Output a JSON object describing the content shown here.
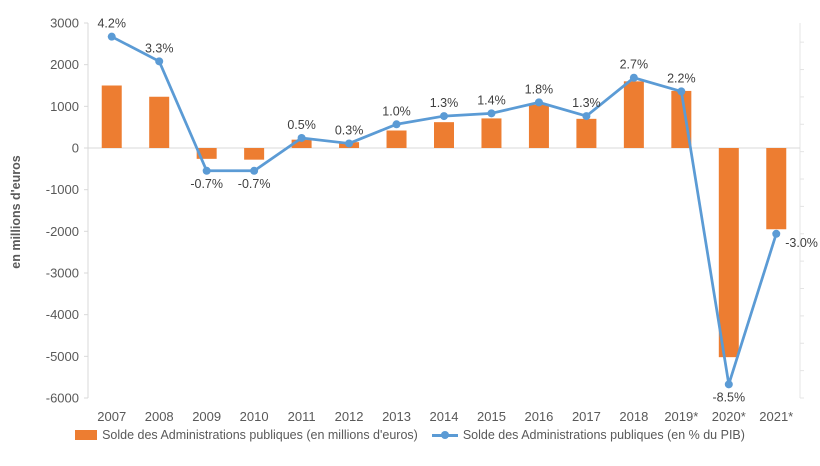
{
  "chart_data": {
    "type": "combo-bar-line",
    "title": "",
    "categories": [
      "2007",
      "2008",
      "2009",
      "2010",
      "2011",
      "2012",
      "2013",
      "2014",
      "2015",
      "2016",
      "2017",
      "2018",
      "2019*",
      "2020*",
      "2021*"
    ],
    "series": [
      {
        "name": "Solde des Administrations publiques (en millions d'euros)",
        "type": "bar",
        "axis": "y1",
        "color": "#ED7D31",
        "values": [
          1500,
          1230,
          -260,
          -280,
          200,
          140,
          420,
          620,
          710,
          1040,
          700,
          1600,
          1370,
          -5020,
          -1950
        ]
      },
      {
        "name": "Solde des Administrations publiques (en % du PIB)",
        "type": "line",
        "axis": "y2",
        "color": "#5B9BD5",
        "values": [
          4.2,
          3.3,
          -0.7,
          -0.7,
          0.5,
          0.3,
          1.0,
          1.3,
          1.4,
          1.8,
          1.3,
          2.7,
          2.2,
          -8.5,
          -3.0
        ],
        "point_labels": [
          "4.2%",
          "3.3%",
          "-0.7%",
          "-0.7%",
          "0.5%",
          "0.3%",
          "1.0%",
          "1.3%",
          "1.4%",
          "1.8%",
          "1.3%",
          "2.7%",
          "2.2%",
          "-8.5%",
          "-3.0%"
        ],
        "label_positions": [
          "above",
          "above",
          "below",
          "below",
          "above",
          "above",
          "above",
          "above",
          "above",
          "above",
          "above",
          "above",
          "above",
          "below",
          "right"
        ]
      }
    ],
    "xlabel": "",
    "ylabel": "en millions d'euros",
    "y1lim": [
      -6000,
      3000
    ],
    "y1ticks": [
      "3000",
      "2000",
      "1000",
      "0",
      "-1000",
      "-2000",
      "-3000",
      "-4000",
      "-5000",
      "-6000"
    ],
    "y2lim": [
      -9,
      4.7
    ],
    "y2tick_step": 1,
    "grid": false,
    "legend_position": "bottom"
  },
  "colors": {
    "bar": "#ED7D31",
    "line": "#5B9BD5",
    "axis_line": "#D9D9D9",
    "secondary_axis_line": "#E4E4E4",
    "tick_text": "#595959",
    "data_label": "#3F3F3F",
    "background": "#FFFFFF"
  }
}
